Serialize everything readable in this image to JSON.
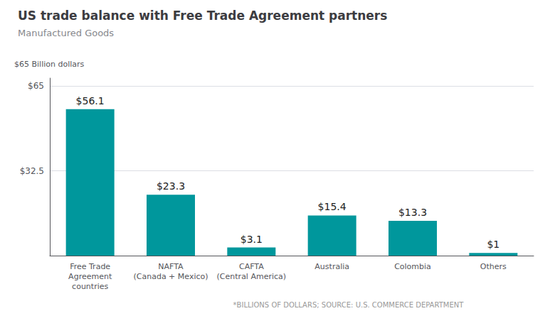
{
  "chart_data": {
    "type": "bar",
    "title": "US trade balance with Free Trade Agreement partners",
    "subtitle": "Manufactured Goods",
    "ylabel": "$65 Billion dollars",
    "footnote": "*BILLIONS OF DOLLARS; SOURCE: U.S. COMMERCE DEPARTMENT",
    "categories": [
      "Free Trade\nAgreement\ncountries",
      "NAFTA\n(Canada + Mexico)",
      "CAFTA\n(Central America)",
      "Australia",
      "Colombia",
      "Others"
    ],
    "values": [
      56.1,
      23.3,
      3.1,
      15.4,
      13.3,
      1.0
    ],
    "value_labels": [
      "$56.1",
      "$23.3",
      "$3.1",
      "$15.4",
      "$13.3",
      "$1"
    ],
    "data_labels": true,
    "color": "#00979c",
    "ylim": [
      0,
      68
    ],
    "yticks": [
      {
        "value": 32.5,
        "label": "$32.5"
      },
      {
        "value": 65,
        "label": "$65"
      }
    ],
    "grid": true
  }
}
